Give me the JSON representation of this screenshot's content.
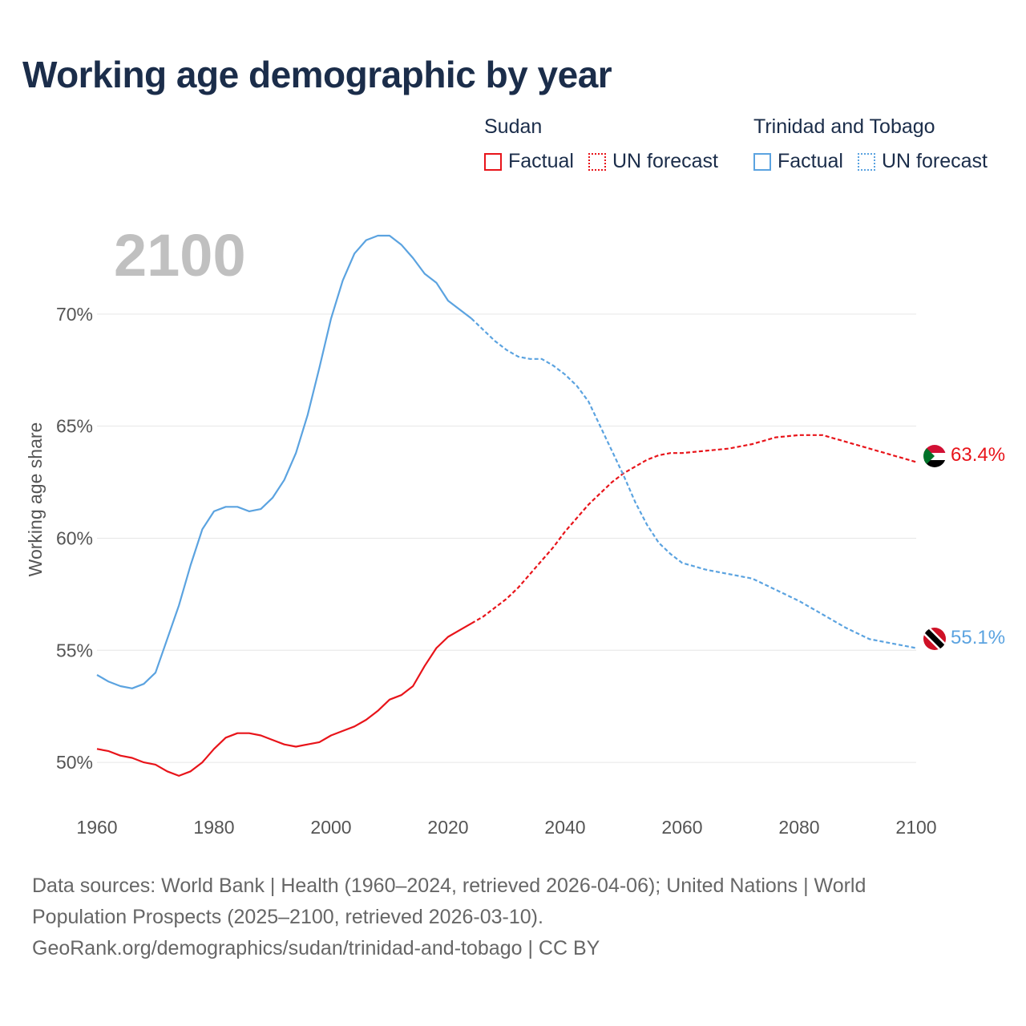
{
  "header": {
    "title": "Working age demographic by year"
  },
  "legend": {
    "groups": [
      {
        "name": "Sudan",
        "factual_label": "Factual",
        "forecast_label": "UN forecast",
        "color": "#e8141a"
      },
      {
        "name": "Trinidad and Tobago",
        "factual_label": "Factual",
        "forecast_label": "UN forecast",
        "color": "#5ba3e0"
      }
    ]
  },
  "year_watermark": "2100",
  "footer": {
    "line1": "Data sources: World Bank | Health (1960–2024, retrieved 2026-04-06); United Nations | World",
    "line2": "Population Prospects (2025–2100, retrieved 2026-03-10).",
    "line3": "GeoRank.org/demographics/sudan/trinidad-and-tobago | CC BY"
  },
  "chart_data": {
    "type": "line",
    "title": "Working age demographic by year",
    "xlabel": "",
    "ylabel": "Working age share",
    "xlim": [
      1960,
      2100
    ],
    "ylim": [
      48,
      74
    ],
    "x_ticks": [
      1960,
      1980,
      2000,
      2020,
      2040,
      2060,
      2080,
      2100
    ],
    "y_ticks": [
      50,
      55,
      60,
      65,
      70
    ],
    "y_tick_labels": [
      "50%",
      "55%",
      "60%",
      "65%",
      "70%"
    ],
    "x_tick_labels": [
      "1960",
      "1980",
      "2000",
      "2020",
      "2040",
      "2060",
      "2080",
      "2100"
    ],
    "forecast_start_year": 2024,
    "series": [
      {
        "name": "Sudan",
        "color": "#e8141a",
        "end_label": "63.4%",
        "points": [
          [
            1960,
            50.6
          ],
          [
            1962,
            50.5
          ],
          [
            1964,
            50.3
          ],
          [
            1966,
            50.2
          ],
          [
            1968,
            50.0
          ],
          [
            1970,
            49.9
          ],
          [
            1972,
            49.6
          ],
          [
            1974,
            49.4
          ],
          [
            1976,
            49.6
          ],
          [
            1978,
            50.0
          ],
          [
            1980,
            50.6
          ],
          [
            1982,
            51.1
          ],
          [
            1984,
            51.3
          ],
          [
            1986,
            51.3
          ],
          [
            1988,
            51.2
          ],
          [
            1990,
            51.0
          ],
          [
            1992,
            50.8
          ],
          [
            1994,
            50.7
          ],
          [
            1996,
            50.8
          ],
          [
            1998,
            50.9
          ],
          [
            2000,
            51.2
          ],
          [
            2002,
            51.4
          ],
          [
            2004,
            51.6
          ],
          [
            2006,
            51.9
          ],
          [
            2008,
            52.3
          ],
          [
            2010,
            52.8
          ],
          [
            2012,
            53.0
          ],
          [
            2014,
            53.4
          ],
          [
            2016,
            54.3
          ],
          [
            2018,
            55.1
          ],
          [
            2020,
            55.6
          ],
          [
            2022,
            55.9
          ],
          [
            2024,
            56.2
          ],
          [
            2026,
            56.5
          ],
          [
            2028,
            56.9
          ],
          [
            2030,
            57.3
          ],
          [
            2032,
            57.8
          ],
          [
            2034,
            58.4
          ],
          [
            2036,
            59.0
          ],
          [
            2038,
            59.6
          ],
          [
            2040,
            60.3
          ],
          [
            2042,
            60.9
          ],
          [
            2044,
            61.5
          ],
          [
            2046,
            62.0
          ],
          [
            2048,
            62.5
          ],
          [
            2050,
            62.9
          ],
          [
            2052,
            63.2
          ],
          [
            2054,
            63.5
          ],
          [
            2056,
            63.7
          ],
          [
            2058,
            63.8
          ],
          [
            2060,
            63.8
          ],
          [
            2064,
            63.9
          ],
          [
            2068,
            64.0
          ],
          [
            2072,
            64.2
          ],
          [
            2076,
            64.5
          ],
          [
            2080,
            64.6
          ],
          [
            2084,
            64.6
          ],
          [
            2088,
            64.3
          ],
          [
            2092,
            64.0
          ],
          [
            2096,
            63.7
          ],
          [
            2100,
            63.4
          ]
        ]
      },
      {
        "name": "Trinidad and Tobago",
        "color": "#5ba3e0",
        "end_label": "55.1%",
        "points": [
          [
            1960,
            53.9
          ],
          [
            1962,
            53.6
          ],
          [
            1964,
            53.4
          ],
          [
            1966,
            53.3
          ],
          [
            1968,
            53.5
          ],
          [
            1970,
            54.0
          ],
          [
            1972,
            55.5
          ],
          [
            1974,
            57.0
          ],
          [
            1976,
            58.8
          ],
          [
            1978,
            60.4
          ],
          [
            1980,
            61.2
          ],
          [
            1982,
            61.4
          ],
          [
            1984,
            61.4
          ],
          [
            1986,
            61.2
          ],
          [
            1988,
            61.3
          ],
          [
            1990,
            61.8
          ],
          [
            1992,
            62.6
          ],
          [
            1994,
            63.8
          ],
          [
            1996,
            65.5
          ],
          [
            1998,
            67.6
          ],
          [
            2000,
            69.8
          ],
          [
            2002,
            71.5
          ],
          [
            2004,
            72.7
          ],
          [
            2006,
            73.3
          ],
          [
            2008,
            73.5
          ],
          [
            2010,
            73.5
          ],
          [
            2012,
            73.1
          ],
          [
            2014,
            72.5
          ],
          [
            2016,
            71.8
          ],
          [
            2018,
            71.4
          ],
          [
            2020,
            70.6
          ],
          [
            2022,
            70.2
          ],
          [
            2024,
            69.8
          ],
          [
            2026,
            69.3
          ],
          [
            2028,
            68.8
          ],
          [
            2030,
            68.4
          ],
          [
            2032,
            68.1
          ],
          [
            2034,
            68.0
          ],
          [
            2036,
            68.0
          ],
          [
            2038,
            67.7
          ],
          [
            2040,
            67.3
          ],
          [
            2042,
            66.8
          ],
          [
            2044,
            66.1
          ],
          [
            2046,
            65.0
          ],
          [
            2048,
            63.9
          ],
          [
            2050,
            62.8
          ],
          [
            2052,
            61.6
          ],
          [
            2054,
            60.6
          ],
          [
            2056,
            59.8
          ],
          [
            2058,
            59.3
          ],
          [
            2060,
            58.9
          ],
          [
            2064,
            58.6
          ],
          [
            2068,
            58.4
          ],
          [
            2072,
            58.2
          ],
          [
            2076,
            57.7
          ],
          [
            2080,
            57.2
          ],
          [
            2084,
            56.6
          ],
          [
            2088,
            56.0
          ],
          [
            2092,
            55.5
          ],
          [
            2096,
            55.3
          ],
          [
            2100,
            55.1
          ]
        ]
      }
    ]
  }
}
